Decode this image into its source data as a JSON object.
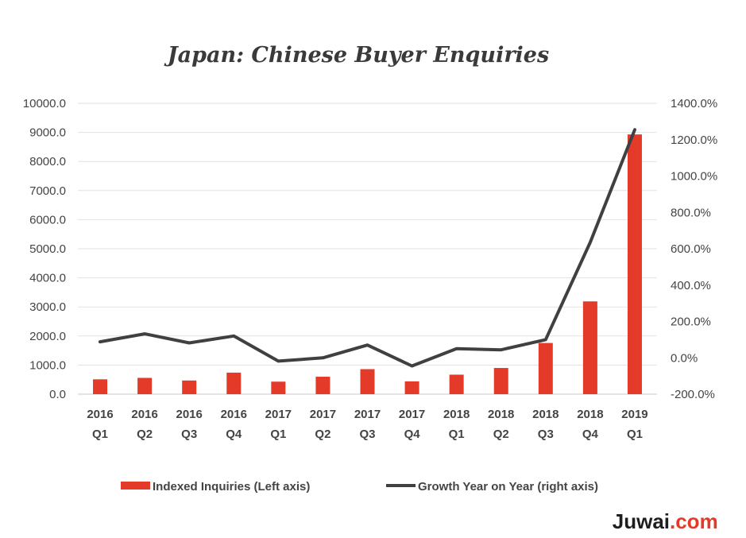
{
  "chart_data": {
    "type": "bar",
    "title": "Japan: Chinese Buyer Enquiries",
    "categories": [
      [
        "2016",
        "Q1"
      ],
      [
        "2016",
        "Q2"
      ],
      [
        "2016",
        "Q3"
      ],
      [
        "2016",
        "Q4"
      ],
      [
        "2017",
        "Q1"
      ],
      [
        "2017",
        "Q2"
      ],
      [
        "2017",
        "Q3"
      ],
      [
        "2017",
        "Q4"
      ],
      [
        "2018",
        "Q1"
      ],
      [
        "2018",
        "Q2"
      ],
      [
        "2018",
        "Q3"
      ],
      [
        "2018",
        "Q4"
      ],
      [
        "2019",
        "Q1"
      ]
    ],
    "series": [
      {
        "name": "Indexed Inquiries (Left axis)",
        "type": "bar",
        "axis": "left",
        "color": "#e33a2a",
        "values": [
          510,
          560,
          470,
          740,
          430,
          600,
          860,
          440,
          670,
          900,
          1760,
          3190,
          8930
        ]
      },
      {
        "name": "Growth Year on Year (right axis)",
        "type": "line",
        "axis": "right",
        "color": "#404040",
        "values": [
          88,
          132,
          82,
          120,
          -18,
          0,
          70,
          -45,
          50,
          44,
          100,
          635,
          1255
        ]
      }
    ],
    "left_axis": {
      "ylim": [
        0,
        10000
      ],
      "ticks": [
        "0.0",
        "1000.0",
        "2000.0",
        "3000.0",
        "4000.0",
        "5000.0",
        "6000.0",
        "7000.0",
        "8000.0",
        "9000.0",
        "10000.0"
      ]
    },
    "right_axis": {
      "ylim": [
        -200,
        1400
      ],
      "ticks": [
        "-200.0%",
        "0.0%",
        "200.0%",
        "400.0%",
        "600.0%",
        "800.0%",
        "1000.0%",
        "1200.0%",
        "1400.0%"
      ]
    },
    "grid": true,
    "legend_position": "bottom"
  },
  "brand": {
    "main": "Juwai",
    "accent": ".com"
  }
}
